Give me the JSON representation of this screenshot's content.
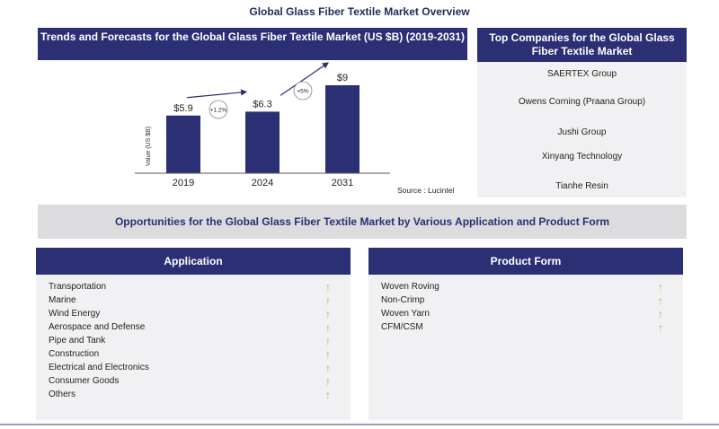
{
  "title": "Global Glass Fiber Textile Market Overview",
  "chart_header": "Trends and Forecasts for the Global Glass Fiber Textile Market (US $B) (2019-2031)",
  "chart_data": {
    "type": "bar",
    "categories": [
      "2019",
      "2024",
      "2031"
    ],
    "values": [
      5.9,
      6.3,
      9
    ],
    "data_labels": [
      "$5.9",
      "$6.3",
      "$9"
    ],
    "ylabel": "Value (US $B)",
    "growth_labels": [
      "+1.2%",
      "+5%"
    ],
    "source": "Source : Lucintel",
    "bar_color": "#2b2f74"
  },
  "companies": {
    "header": "Top Companies for the Global Glass Fiber Textile Market",
    "items": [
      "SAERTEX Group",
      "Owens Corning (Praana Group)",
      "Jushi Group",
      "Xinyang Technology",
      "Tianhe Resin"
    ]
  },
  "opportunities_banner": "Opportunities for the Global Glass Fiber Textile Market  by Various Application and Product Form",
  "application": {
    "header": "Application",
    "items": [
      "Transportation",
      "Marine",
      "Wind Energy",
      "Aerospace and Defense",
      "Pipe and Tank",
      "Construction",
      "Electrical and Electronics",
      "Consumer Goods",
      "Others"
    ]
  },
  "product_form": {
    "header": "Product Form",
    "items": [
      "Woven Roving",
      "Non-Crimp",
      "Woven Yarn",
      "CFM/CSM"
    ]
  },
  "colors": {
    "navy": "#2b2f74",
    "arrow_green": "#8cc63f",
    "panel_bg": "#f1f1f3"
  }
}
